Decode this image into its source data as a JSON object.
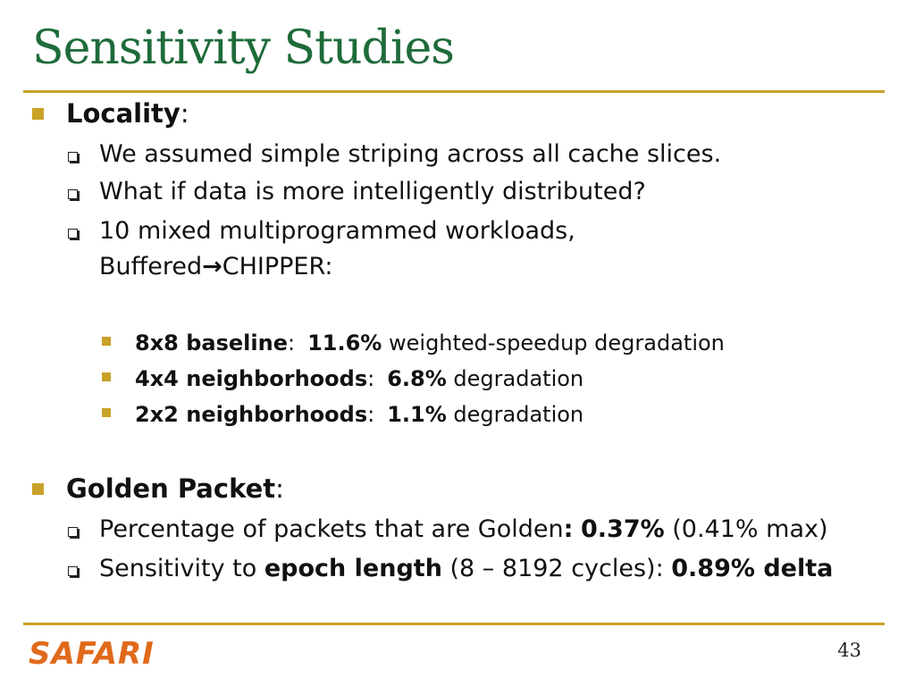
{
  "title": "Sensitivity Studies",
  "locality": {
    "heading": "Locality",
    "colon": ":",
    "items": [
      "We assumed simple striping across all cache slices.",
      "What if data is more intelligently distributed?"
    ],
    "workloads_line1": "10 mixed multiprogrammed workloads,",
    "workloads_line2_a": "Buffered",
    "workloads_arrow": "→",
    "workloads_line2_b": "CHIPPER:",
    "results": [
      {
        "label": "8x8 baseline",
        "sep": ":",
        "value": "11.6%",
        "desc": "weighted-speedup degradation"
      },
      {
        "label": "4x4 neighborhoods",
        "sep": ":",
        "value": "6.8%",
        "desc": "degradation"
      },
      {
        "label": "2x2 neighborhoods",
        "sep": ":",
        "value": "1.1%",
        "desc": "degradation"
      }
    ]
  },
  "golden": {
    "heading": "Golden Packet",
    "colon": ":",
    "pct_text": "Percentage of packets that are Golden",
    "pct_sep": ":",
    "pct_value": "0.37%",
    "pct_max": "(0.41% max)",
    "sens_text": "Sensitivity to",
    "sens_bold": "epoch length",
    "sens_range": "(8 – 8192 cycles):",
    "sens_value": "0.89% delta"
  },
  "footer": {
    "logo": "SAFARI",
    "page_number": "43"
  },
  "colors": {
    "title": "#1e6b3a",
    "accent": "#c9a227",
    "logo": "#e06a1b"
  }
}
